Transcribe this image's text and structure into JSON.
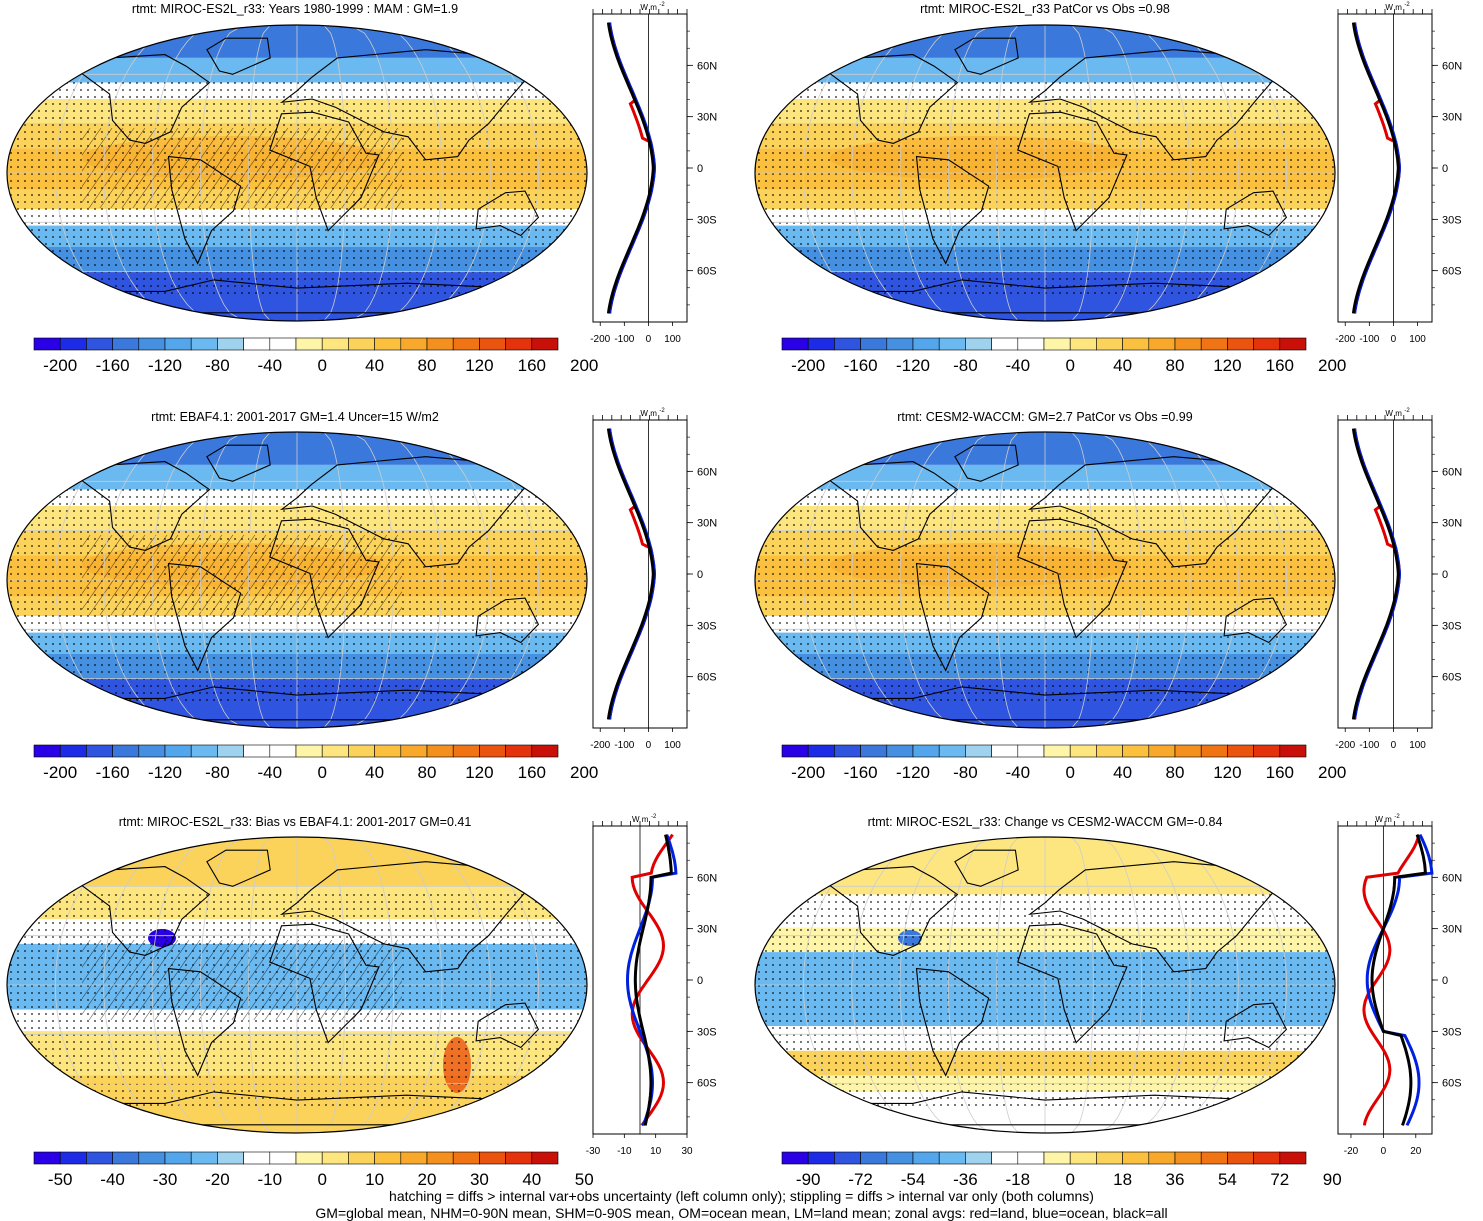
{
  "footer": {
    "line1": "hatching = diffs > internal var+obs uncertainty (left column only); stippling = diffs > internal var only (both columns)",
    "line2": "GM=global mean, NHM=0-90N mean, SHM=0-90S mean, OM=ocean mean, LM=land mean; zonal avgs: red=land, blue=ocean, black=all"
  },
  "zonal_axis": {
    "unit_label": "W m",
    "unit_exp": "-2",
    "lat_labels": [
      "60N",
      "30N",
      "0",
      "30S",
      "60S"
    ]
  },
  "colorbars": {
    "full": {
      "colors": [
        "#2a00e6",
        "#1e2be6",
        "#2e54e0",
        "#3a78dc",
        "#4590e0",
        "#54a6ec",
        "#6ab9f0",
        "#9ed2ee",
        "#ffffff",
        "#ffffff",
        "#fff5a8",
        "#fde680",
        "#fcd35a",
        "#fbc03e",
        "#f8a82a",
        "#f4901e",
        "#f07414",
        "#ea540e",
        "#e4320c",
        "#c81008"
      ],
      "labels": [
        "-200",
        "-160",
        "-120",
        "-80",
        "-40",
        "0",
        "40",
        "80",
        "120",
        "160",
        "200"
      ]
    },
    "bias": {
      "colors": [
        "#2a00e6",
        "#1e2be6",
        "#2e54e0",
        "#3a78dc",
        "#4590e0",
        "#54a6ec",
        "#6ab9f0",
        "#9ed2ee",
        "#ffffff",
        "#ffffff",
        "#fff5a8",
        "#fde680",
        "#fcd35a",
        "#fbc03e",
        "#f8a82a",
        "#f4901e",
        "#f07414",
        "#ea540e",
        "#e4320c",
        "#c81008"
      ],
      "labels": [
        "-50",
        "-40",
        "-30",
        "-20",
        "-10",
        "0",
        "10",
        "20",
        "30",
        "40",
        "50"
      ]
    },
    "change": {
      "colors": [
        "#2a00e6",
        "#1e2be6",
        "#2e54e0",
        "#3a78dc",
        "#4590e0",
        "#54a6ec",
        "#6ab9f0",
        "#9ed2ee",
        "#ffffff",
        "#ffffff",
        "#fff5a8",
        "#fde680",
        "#fcd35a",
        "#fbc03e",
        "#f8a82a",
        "#f4901e",
        "#f07414",
        "#ea540e",
        "#e4320c",
        "#c81008"
      ],
      "labels": [
        "-90",
        "-72",
        "-54",
        "-36",
        "-18",
        "0",
        "18",
        "36",
        "54",
        "72",
        "90"
      ]
    }
  },
  "panels": [
    {
      "title": "rtmt: MIROC-ES2L_r33: Years 1980-1999 : MAM : GM=1.9",
      "kind": "full",
      "zonal_ticks": [
        "-200",
        "-100",
        "0",
        "100"
      ]
    },
    {
      "title": "rtmt: MIROC-ES2L_r33 PatCor vs Obs =0.98",
      "kind": "full",
      "zonal_ticks": [
        "-200",
        "-100",
        "0",
        "100"
      ]
    },
    {
      "title": "rtmt: EBAF4.1: 2001-2017 GM=1.4 Uncer=15 W/m2",
      "kind": "full",
      "zonal_ticks": [
        "-200",
        "-100",
        "0",
        "100"
      ]
    },
    {
      "title": "rtmt: CESM2-WACCM: GM=2.7 PatCor vs Obs =0.99",
      "kind": "full",
      "zonal_ticks": [
        "-200",
        "-100",
        "0",
        "100"
      ]
    },
    {
      "title": "rtmt: MIROC-ES2L_r33: Bias vs EBAF4.1: 2001-2017 GM=0.41",
      "kind": "bias",
      "zonal_ticks": [
        "-30",
        "-10",
        "10",
        "30"
      ]
    },
    {
      "title": "rtmt: MIROC-ES2L_r33: Change vs CESM2-WACCM GM=-0.84",
      "kind": "change",
      "zonal_ticks": [
        "-20",
        "0",
        "20"
      ]
    }
  ]
}
